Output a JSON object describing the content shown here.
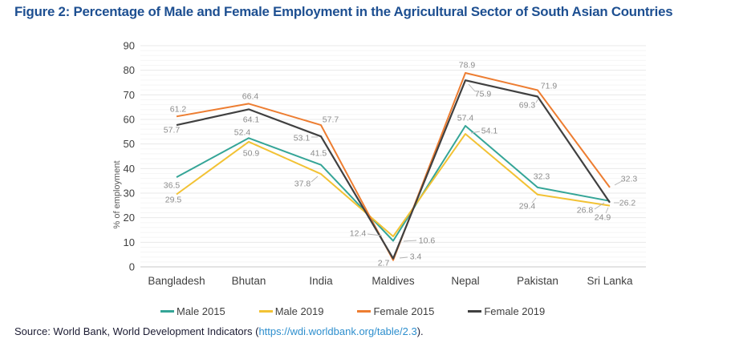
{
  "title": "Figure 2: Percentage of Male and Female Employment in the Agricultural Sector of South Asian Countries",
  "chart_data": {
    "type": "line",
    "title": "Figure 2: Percentage of Male and Female Employment in the Agricultural Sector of South Asian Countries",
    "categories": [
      "Bangladesh",
      "Bhutan",
      "India",
      "Maldives",
      "Nepal",
      "Pakistan",
      "Sri Lanka"
    ],
    "series": [
      {
        "name": "Male 2015",
        "color": "#35A597",
        "values": [
          36.5,
          52.4,
          41.5,
          10.6,
          57.4,
          32.3,
          26.8
        ]
      },
      {
        "name": "Male 2019",
        "color": "#F2C234",
        "values": [
          29.5,
          50.9,
          37.8,
          12.4,
          54.1,
          29.4,
          24.9
        ]
      },
      {
        "name": "Female 2015",
        "color": "#ED7D31",
        "values": [
          61.2,
          66.4,
          57.7,
          2.7,
          78.9,
          71.9,
          32.3
        ]
      },
      {
        "name": "Female 2019",
        "color": "#404040",
        "values": [
          57.7,
          64.1,
          53.1,
          3.4,
          75.9,
          69.3,
          26.2
        ]
      }
    ],
    "xlabel": "",
    "ylabel": "% of employment",
    "ylim": [
      0,
      90
    ],
    "yticks": [
      90,
      80,
      70,
      60,
      50,
      40,
      30,
      20,
      10,
      0
    ],
    "grid": "horizontal-minor-and-major",
    "legend_position": "bottom",
    "data_labels": true
  },
  "source": {
    "prefix": "Source: World Bank, World Development Indicators (",
    "link_text": "https://wdi.worldbank.org/table/2.3",
    "suffix": ")."
  },
  "colors": {
    "title_blue": "#1D4F91",
    "link_blue": "#2E8FCE",
    "data_label_gray": "#8C8C8C",
    "axis_text": "#404040",
    "y_axis_title": "#595959",
    "minor_grid": "#F5F5F5",
    "major_grid": "#E8E8E8",
    "axis_line": "#D2D2D2",
    "leader_line": "#B3B3B3"
  }
}
